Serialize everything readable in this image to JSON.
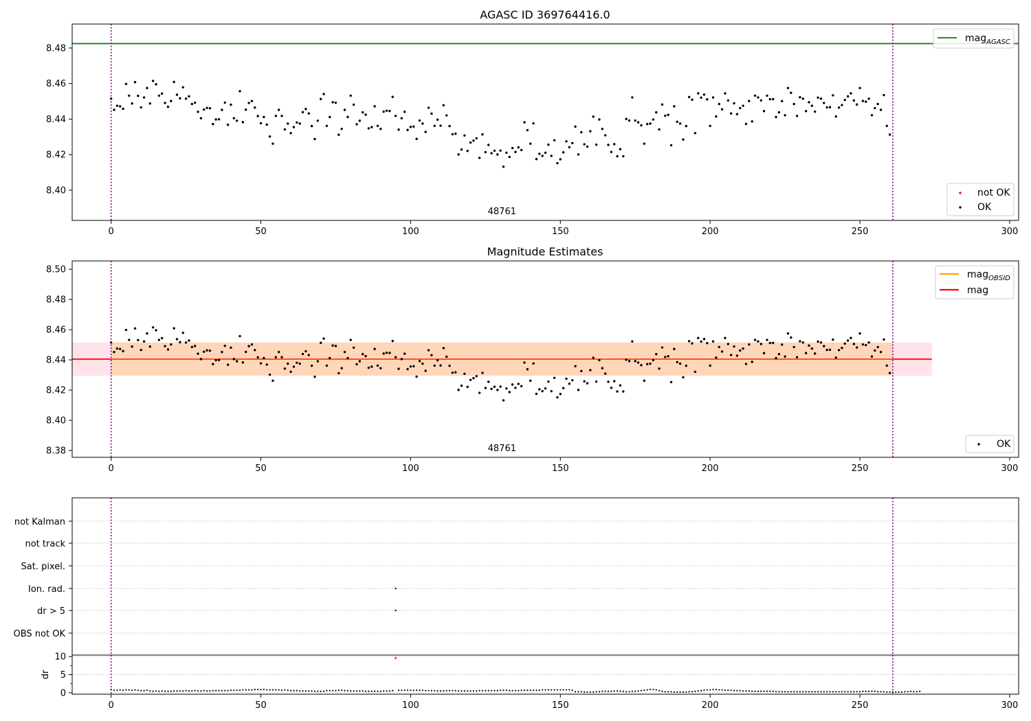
{
  "figure": {
    "title": "AGASC ID 369764416.0"
  },
  "colors": {
    "agasc_line": "#008000",
    "obsid_line": "#ffa500",
    "mean_line": "#ff0000",
    "ok_point": "#000000",
    "not_ok_point": "#ff0000",
    "vline": "#800080",
    "band_pink": "#ffc0cb",
    "band_orange": "#ffa500",
    "grid": "#b0b0b0"
  },
  "chart_data": [
    {
      "type": "scatter",
      "title": "AGASC ID 369764416.0",
      "xlim": [
        -13,
        303
      ],
      "ylim": [
        8.383,
        8.4935
      ],
      "xticks": [
        0,
        50,
        100,
        150,
        200,
        250,
        300
      ],
      "yticks": [
        8.4,
        8.42,
        8.44,
        8.46,
        8.48
      ],
      "ytick_labels": [
        "8.40",
        "8.42",
        "8.44",
        "8.46",
        "8.48"
      ],
      "agasc_mag": 8.4825,
      "obsid_boundaries": [
        0,
        261
      ],
      "obsid_label": "48761",
      "legend_lines": [
        {
          "label": "mag",
          "sub": "AGASC"
        }
      ],
      "legend_points": [
        "not OK",
        "OK"
      ]
    },
    {
      "type": "scatter",
      "title": "Magnitude Estimates",
      "xlim": [
        -13,
        303
      ],
      "ylim": [
        8.3755,
        8.5055
      ],
      "xticks": [
        0,
        50,
        100,
        150,
        200,
        250,
        300
      ],
      "yticks": [
        8.38,
        8.4,
        8.42,
        8.44,
        8.46,
        8.48,
        8.5
      ],
      "ytick_labels": [
        "8.38",
        "8.40",
        "8.42",
        "8.44",
        "8.46",
        "8.48",
        "8.50"
      ],
      "mean_mag": 8.4405,
      "band_full": {
        "x": [
          -13,
          274
        ],
        "y": [
          8.4295,
          8.4515
        ]
      },
      "band_obsid": {
        "x": [
          0,
          261
        ],
        "y": [
          8.4295,
          8.4515
        ]
      },
      "obsid_boundaries": [
        0,
        261
      ],
      "obsid_label": "48761",
      "legend_lines": [
        {
          "label": "mag",
          "sub": "OBSID"
        },
        {
          "label": "mag",
          "sub": ""
        }
      ],
      "legend_points": [
        "OK"
      ]
    },
    {
      "type": "scatter",
      "title": "",
      "xlim": [
        -13,
        303
      ],
      "flag_labels": [
        "not Kalman",
        "not track",
        "Sat. pixel.",
        "Ion. rad.",
        "dr > 5",
        "OBS not OK"
      ],
      "flagged_points": [
        {
          "flag": "Ion. rad.",
          "x": 95
        },
        {
          "flag": "dr > 5",
          "x": 95
        }
      ],
      "obsid_boundaries": [
        0,
        261
      ]
    },
    {
      "type": "scatter",
      "title": "",
      "ylabel": "dr",
      "xlim": [
        -13,
        303
      ],
      "ylim": [
        -0.4,
        10.4
      ],
      "xticks": [
        0,
        50,
        100,
        150,
        200,
        250,
        300
      ],
      "yticks": [
        0,
        5,
        10
      ],
      "ytick_labels": [
        "0",
        "5",
        "10"
      ],
      "outlier": {
        "x": 95,
        "y": 9.6
      },
      "obsid_boundaries": [
        0,
        261
      ]
    }
  ],
  "magnitude_series": {
    "x_start": 0,
    "values": [
      8.4515,
      8.4452,
      8.4475,
      8.4472,
      8.4458,
      8.4598,
      8.4532,
      8.4488,
      8.4608,
      8.4531,
      8.4466,
      8.4522,
      8.4575,
      8.4488,
      8.4615,
      8.4596,
      8.4532,
      8.4544,
      8.4491,
      8.4469,
      8.4502,
      8.4609,
      8.4537,
      8.4517,
      8.4579,
      8.4515,
      8.4528,
      8.4485,
      8.4492,
      8.4441,
      8.4405,
      8.4454,
      8.4463,
      8.4461,
      8.4372,
      8.4398,
      8.4399,
      8.4452,
      8.4493,
      8.4368,
      8.4481,
      8.4405,
      8.4391,
      8.4557,
      8.4383,
      8.4453,
      8.4491,
      8.4502,
      8.4465,
      8.4417,
      8.4377,
      8.4412,
      8.4369,
      8.4302,
      8.4262,
      8.4418,
      8.4452,
      8.4418,
      8.4342,
      8.4375,
      8.4321,
      8.4355,
      8.4381,
      8.4375,
      8.4439,
      8.4457,
      8.4432,
      8.4361,
      8.4288,
      8.4391,
      8.4513,
      8.4541,
      8.4362,
      8.4412,
      8.4495,
      8.4492,
      8.4312,
      8.4345,
      8.4452,
      8.4412,
      8.4532,
      8.4481,
      8.4371,
      8.4391,
      8.4438,
      8.4425,
      8.4348,
      8.4355,
      8.4472,
      8.4362,
      8.4345,
      8.4442,
      8.4447,
      8.4446,
      8.4525,
      8.4418,
      8.4341,
      8.4405,
      8.4441,
      8.4339,
      8.4356,
      8.4358,
      8.4289,
      8.4392,
      8.4375,
      8.4328,
      8.4464,
      8.4431,
      8.4362,
      8.4397,
      8.4363,
      8.4478,
      8.4421,
      8.4361,
      8.4315,
      8.4318,
      8.4201,
      8.4229,
      8.4308,
      8.4221,
      8.4268,
      8.4279,
      8.4292,
      8.4182,
      8.4314,
      8.4214,
      8.4255,
      8.4208,
      8.4222,
      8.4201,
      8.4223,
      8.4132,
      8.4211,
      8.4187,
      8.4237,
      8.4215,
      8.4241,
      8.4226,
      8.4382,
      8.4338,
      8.4262,
      8.4376,
      8.4175,
      8.4205,
      8.4193,
      8.4211,
      8.4256,
      8.4193,
      8.4281,
      8.4152,
      8.4174,
      8.4213,
      8.4275,
      8.4242,
      8.4265,
      8.4358,
      8.4201,
      8.4326,
      8.4258,
      8.4245,
      8.4332,
      8.4414,
      8.4256,
      8.4398,
      8.4345,
      8.4309,
      8.4255,
      8.4215,
      8.4259,
      8.4191,
      8.4231,
      8.4191,
      8.4401,
      8.4392,
      8.4522,
      8.4392,
      8.4382,
      8.4365,
      8.4262,
      8.4372,
      8.4375,
      8.4398,
      8.4438,
      8.4342,
      8.4482,
      8.4419,
      8.4424,
      8.4253,
      8.4472,
      8.4385,
      8.4375,
      8.4285,
      8.4361,
      8.4524,
      8.4509,
      8.4321,
      8.4545,
      8.4521,
      8.4538,
      8.4511,
      8.4362,
      8.4522,
      8.4415,
      8.4485,
      8.4455,
      8.4545,
      8.4505,
      8.4432,
      8.4489,
      8.4428,
      8.4462,
      8.4475,
      8.4373,
      8.4502,
      8.4387,
      8.4532,
      8.4522,
      8.4505,
      8.4445,
      8.4532,
      8.4512,
      8.4512,
      8.4412,
      8.4438,
      8.4501,
      8.4422,
      8.4575,
      8.4548,
      8.4485,
      8.4418,
      8.4523,
      8.4515,
      8.4445,
      8.4495,
      8.4475,
      8.4442,
      8.4521,
      8.4515,
      8.4491,
      8.4466,
      8.4467,
      8.4534,
      8.4415,
      8.4465,
      8.4479,
      8.4508,
      8.4528,
      8.4545,
      8.4505,
      8.4482,
      8.4575,
      8.4502,
      8.4498,
      8.4515,
      8.4422,
      8.4462,
      8.4485,
      8.4452,
      8.4535,
      8.4362,
      8.4313
    ]
  },
  "dr_series": {
    "x_start": 0,
    "values": [
      0.9,
      0.7,
      0.7,
      0.8,
      0.7,
      0.8,
      0.8,
      0.7,
      0.8,
      0.7,
      0.6,
      0.6,
      0.7,
      0.5,
      0.4,
      0.5,
      0.4,
      0.5,
      0.4,
      0.4,
      0.4,
      0.5,
      0.5,
      0.5,
      0.5,
      0.6,
      0.5,
      0.5,
      0.6,
      0.5,
      0.5,
      0.6,
      0.5,
      0.5,
      0.6,
      0.6,
      0.6,
      0.6,
      0.6,
      0.6,
      0.7,
      0.7,
      0.7,
      0.7,
      0.8,
      0.8,
      0.8,
      0.8,
      0.9,
      0.9,
      0.9,
      0.9,
      0.8,
      0.8,
      0.8,
      0.8,
      0.8,
      0.7,
      0.8,
      0.7,
      0.6,
      0.6,
      0.6,
      0.5,
      0.5,
      0.5,
      0.5,
      0.5,
      0.4,
      0.4,
      0.4,
      0.4,
      0.6,
      0.6,
      0.6,
      0.6,
      0.7,
      0.7,
      0.6,
      0.6,
      0.5,
      0.5,
      0.5,
      0.5,
      0.5,
      0.4,
      0.4,
      0.4,
      0.4,
      0.4,
      0.4,
      0.5,
      0.5,
      0.5,
      0.6,
      9.6,
      0.7,
      0.7,
      0.7,
      0.7,
      0.7,
      0.7,
      0.7,
      0.7,
      0.7,
      0.6,
      0.6,
      0.6,
      0.6,
      0.5,
      0.5,
      0.5,
      0.6,
      0.6,
      0.6,
      0.6,
      0.5,
      0.5,
      0.5,
      0.5,
      0.5,
      0.5,
      0.5,
      0.6,
      0.6,
      0.6,
      0.6,
      0.6,
      0.6,
      0.6,
      0.7,
      0.7,
      0.7,
      0.6,
      0.6,
      0.6,
      0.6,
      0.7,
      0.7,
      0.7,
      0.7,
      0.7,
      0.7,
      0.7,
      0.8,
      0.8,
      0.8,
      0.8,
      0.8,
      0.8,
      0.8,
      0.8,
      0.8,
      0.8,
      0.7,
      0.3,
      0.3,
      0.3,
      0.2,
      0.2,
      0.2,
      0.2,
      0.3,
      0.3,
      0.4,
      0.4,
      0.4,
      0.4,
      0.5,
      0.5,
      0.4,
      0.4,
      0.3,
      0.3,
      0.4,
      0.4,
      0.5,
      0.6,
      0.7,
      0.8,
      0.9,
      0.9,
      0.8,
      0.6,
      0.4,
      0.3,
      0.3,
      0.3,
      0.2,
      0.2,
      0.2,
      0.2,
      0.2,
      0.3,
      0.3,
      0.4,
      0.5,
      0.6,
      0.7,
      0.8,
      0.8,
      0.9,
      0.9,
      0.8,
      0.8,
      0.7,
      0.7,
      0.7,
      0.6,
      0.6,
      0.6,
      0.5,
      0.5,
      0.5,
      0.4,
      0.4,
      0.4,
      0.4,
      0.4,
      0.4,
      0.4,
      0.4,
      0.3,
      0.3,
      0.3,
      0.3,
      0.3,
      0.3,
      0.3,
      0.3,
      0.3,
      0.3,
      0.3,
      0.3,
      0.3,
      0.3,
      0.3,
      0.3,
      0.3,
      0.3,
      0.3,
      0.3,
      0.3,
      0.3,
      0.3,
      0.3,
      0.3,
      0.3,
      0.3,
      0.3,
      0.3,
      0.4,
      0.4,
      0.4,
      0.4,
      0.4,
      0.3,
      0.3,
      0.3,
      0.2,
      0.2,
      0.2,
      0.2,
      0.2,
      0.2,
      0.3,
      0.3,
      0.4,
      0.3,
      0.3,
      0.4
    ]
  }
}
